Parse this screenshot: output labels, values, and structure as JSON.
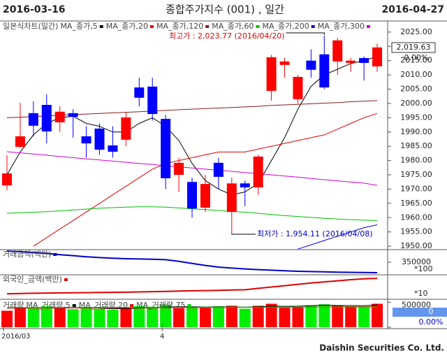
{
  "header": {
    "start_date": "2016-03-16",
    "title": "종합주가지수 (001) , 일간",
    "end_date": "2016-04-27"
  },
  "chart_data": [
    {
      "type": "candlestick",
      "name": "일본식차트(일간)",
      "up_color": "#ff0000",
      "down_color": "#0000ff",
      "open": [
        1971.3,
        1984.8,
        1996.6,
        1999.5,
        1993.4,
        1996.6,
        1988.5,
        1991.2,
        1985.3,
        1987.3,
        2005.6,
        2005.9,
        1994.6,
        1975,
        1972.5,
        1963.5,
        1979.2,
        1962,
        1972,
        1970.6,
        2004.4,
        2013.5,
        2001.5,
        2015,
        2017.2,
        2014.7,
        2014.2,
        2015.9,
        2013
      ],
      "high": [
        1981.9,
        2000.2,
        2000.7,
        2003.2,
        1999,
        1998,
        1992,
        1993,
        1992,
        1997,
        2009,
        2009,
        1996,
        1981,
        1974,
        1975,
        1981,
        1974,
        1973,
        1982,
        2017,
        2016,
        2010,
        2019,
        2023.77,
        2023,
        2016,
        2016.5,
        2021
      ],
      "low": [
        1969.6,
        1984.5,
        1988.5,
        1986,
        1990,
        1988,
        1981,
        1982,
        1981,
        1985,
        1999,
        1994,
        1970,
        1969,
        1960,
        1962,
        1970,
        1954.11,
        1964,
        1968,
        2001,
        2009,
        2000,
        2009,
        2005,
        2010,
        2011,
        2008,
        2011
      ],
      "close": [
        1975.5,
        1988.5,
        1992.2,
        1990.2,
        1997.1,
        1995.3,
        1986,
        1983.8,
        1983.1,
        1995.1,
        2002,
        1996.3,
        1973.8,
        1979.2,
        1963.2,
        1971.8,
        1974.3,
        1972,
        1970.6,
        1981.4,
        2016.2,
        2014.7,
        2009.3,
        2011.8,
        2005.6,
        2022.1,
        2015,
        2014.2,
        2019.63
      ],
      "series": [
        {
          "name": "MA_종가,5",
          "color": "#000000",
          "values": [
            1975,
            1983,
            1989,
            1993,
            1995,
            1995.5,
            1993,
            1992,
            1990,
            1990,
            1993,
            1995,
            1992,
            1987,
            1979,
            1973,
            1970,
            1968,
            1969,
            1972,
            1980,
            1988,
            1998,
            2006,
            2010,
            2012,
            2014,
            2015,
            2016.5
          ]
        },
        {
          "name": "MA_종가,20",
          "color": "#e00000",
          "values": [
            null,
            null,
            1950,
            1953,
            1956,
            1959,
            1962,
            1965,
            1968,
            1971,
            1974,
            1977,
            1979,
            1980,
            1981,
            1982,
            1983,
            1983,
            1983,
            1984,
            1985,
            1986,
            1987,
            1988,
            1989,
            1991,
            1993,
            1995,
            1996.5
          ]
        },
        {
          "name": "MA_종가,120",
          "color": "#8b1a1a",
          "values": [
            1995,
            1995.2,
            1995.4,
            1995.6,
            1995.9,
            1996.1,
            1996.3,
            1996.5,
            1996.7,
            1996.9,
            1997.1,
            1997.3,
            1997.6,
            1997.8,
            1998,
            1998.2,
            1998.4,
            1998.6,
            1998.8,
            1999,
            1999.3,
            1999.5,
            1999.7,
            1999.9,
            2000.1,
            2000.3,
            2000.6,
            2000.8,
            2001
          ]
        },
        {
          "name": "MA_종가,60",
          "color": "#00c000",
          "values": [
            1961.5,
            1961.7,
            1961.9,
            1962.1,
            1962.4,
            1962.7,
            1963,
            1963.3,
            1963.5,
            1963.7,
            1963.8,
            1963.8,
            1963.7,
            1963.4,
            1963.1,
            1962.8,
            1962.5,
            1962.2,
            1961.9,
            1961.5,
            1961.1,
            1960.7,
            1960.4,
            1960.1,
            1959.8,
            1959.5,
            1959.3,
            1959.1,
            1959
          ]
        },
        {
          "name": "MA_종가,200",
          "color": "#0000e0",
          "values": [
            null,
            null,
            null,
            null,
            null,
            null,
            null,
            null,
            null,
            null,
            null,
            null,
            null,
            null,
            null,
            null,
            null,
            null,
            null,
            null,
            null,
            null,
            1949,
            1950.5,
            1952,
            1953.5,
            1955,
            1956.5,
            1957.5
          ]
        },
        {
          "name": "MA_종가,300",
          "color": "#d000d0",
          "values": [
            1983.1,
            1982.7,
            1982.3,
            1981.9,
            1981.4,
            1981,
            1980.6,
            1980.2,
            1979.8,
            1979.4,
            1979,
            1978.6,
            1978.2,
            1977.8,
            1977.4,
            1977,
            1976.6,
            1976.2,
            1975.8,
            1975.4,
            1975,
            1974.6,
            1974.2,
            1973.7,
            1973.3,
            1972.9,
            1972.5,
            1972.1,
            1971.3
          ]
        }
      ],
      "ylim": [
        1948.8,
        2028.4
      ],
      "yticks": [
        {
          "value": 1950,
          "label": "1950.00"
        },
        {
          "value": 1955,
          "label": "1955.00"
        },
        {
          "value": 1960,
          "label": "1960.00"
        },
        {
          "value": 1965,
          "label": "1965.00"
        },
        {
          "value": 1970,
          "label": "1970.00"
        },
        {
          "value": 1975,
          "label": "1975.00"
        },
        {
          "value": 1980,
          "label": "1980.00"
        },
        {
          "value": 1985,
          "label": "1985.00"
        },
        {
          "value": 1990,
          "label": "1990.00"
        },
        {
          "value": 1995,
          "label": "1995.00"
        },
        {
          "value": 2000,
          "label": "2000.00"
        },
        {
          "value": 2005,
          "label": "2005.00"
        },
        {
          "value": 2010,
          "label": "2010.00"
        },
        {
          "value": 2015,
          "label": "2015.00"
        },
        {
          "value": 2020,
          "label": "2020.00"
        },
        {
          "value": 2025,
          "label": "2025.00"
        }
      ],
      "last_price_label": "2,019.63",
      "change_label": "0.00%",
      "annotations": [
        "최고가 : 2,023.77 (2016/04/20)",
        "최저가 : 1,954.11 (2016/04/08)"
      ]
    },
    {
      "type": "line",
      "title": "거래금액(백만)",
      "series": [
        {
          "name": "거래금액",
          "color": "#0000cc",
          "values": [
            483000,
            475000,
            466000,
            455000,
            440000,
            428000,
            415000,
            405000,
            398000,
            392000,
            388000,
            385000,
            380000,
            360000,
            335000,
            312000,
            292000,
            280000,
            270000,
            262000,
            255000,
            248000,
            242000,
            238000,
            235000,
            232000,
            229000,
            227000,
            225000
          ]
        }
      ],
      "ylim": [
        200000,
        500000
      ],
      "yticks": [
        350000
      ],
      "multiplier": "*100"
    },
    {
      "type": "line",
      "title": "외국인_금액(백만)",
      "series": [
        {
          "name": "외국인_금액",
          "color": "#dd0000",
          "values": [
            -30000,
            -29000,
            -28000,
            -27000,
            -26500,
            -26000,
            -25500,
            -25000,
            -24500,
            -24000,
            -23000,
            -22000,
            -21000,
            -20000,
            -19000,
            -18000,
            -17000,
            -16000,
            -15000,
            -10000,
            -5000,
            0,
            5000,
            10000,
            14000,
            18000,
            22000,
            25000,
            27000
          ]
        }
      ],
      "ylim": [
        -50000,
        40000
      ],
      "multiplier": "*10"
    },
    {
      "type": "bar",
      "title": "거래량",
      "up_color": "#ff0000",
      "down_color": "#00ee00",
      "values": [
        330000,
        400000,
        380000,
        420000,
        390000,
        360000,
        380000,
        370000,
        350000,
        400000,
        420000,
        410000,
        450000,
        380000,
        400000,
        390000,
        420000,
        430000,
        370000,
        430000,
        470000,
        390000,
        410000,
        440000,
        460000,
        440000,
        420000,
        400000,
        470000
      ],
      "series": [
        {
          "name": "MA_거래량,5",
          "color": "#000000",
          "values": [
            null,
            null,
            null,
            null,
            386000,
            390000,
            386000,
            384000,
            370000,
            372000,
            384000,
            390000,
            406000,
            412000,
            412000,
            404000,
            408000,
            404000,
            402000,
            408000,
            424000,
            418000,
            422000,
            432000,
            442000,
            436000,
            434000,
            432000,
            446000
          ]
        },
        {
          "name": "MA_거래량,20",
          "color": "#e00000",
          "values": [
            380000,
            382000,
            383000,
            384000,
            385000,
            386000,
            386000,
            387000,
            387000,
            388000,
            389000,
            390000,
            391000,
            392000,
            393000,
            394000,
            395000,
            396000,
            397000,
            398000,
            400000,
            401000,
            402000,
            404000,
            406000,
            408000,
            410000,
            412000,
            414000
          ]
        },
        {
          "name": "MA_거래량,75",
          "color": "#00cc00",
          "values": [
            395000,
            395000,
            396000,
            396000,
            396000,
            397000,
            397000,
            397000,
            398000,
            398000,
            398000,
            399000,
            399000,
            399000,
            400000,
            400000,
            400000,
            401000,
            401000,
            401000,
            402000,
            402000,
            402000,
            403000,
            403000,
            403000,
            404000,
            404000,
            404000
          ]
        }
      ],
      "ylim": [
        0,
        560000
      ],
      "yticks": [
        500000,
        0
      ],
      "change_label": "0.00%",
      "xticks": [
        {
          "value": 0,
          "label": "2016/03"
        },
        {
          "value": 12,
          "label": "4"
        }
      ]
    }
  ],
  "footer": "Daishin Securities Co. Ltd."
}
